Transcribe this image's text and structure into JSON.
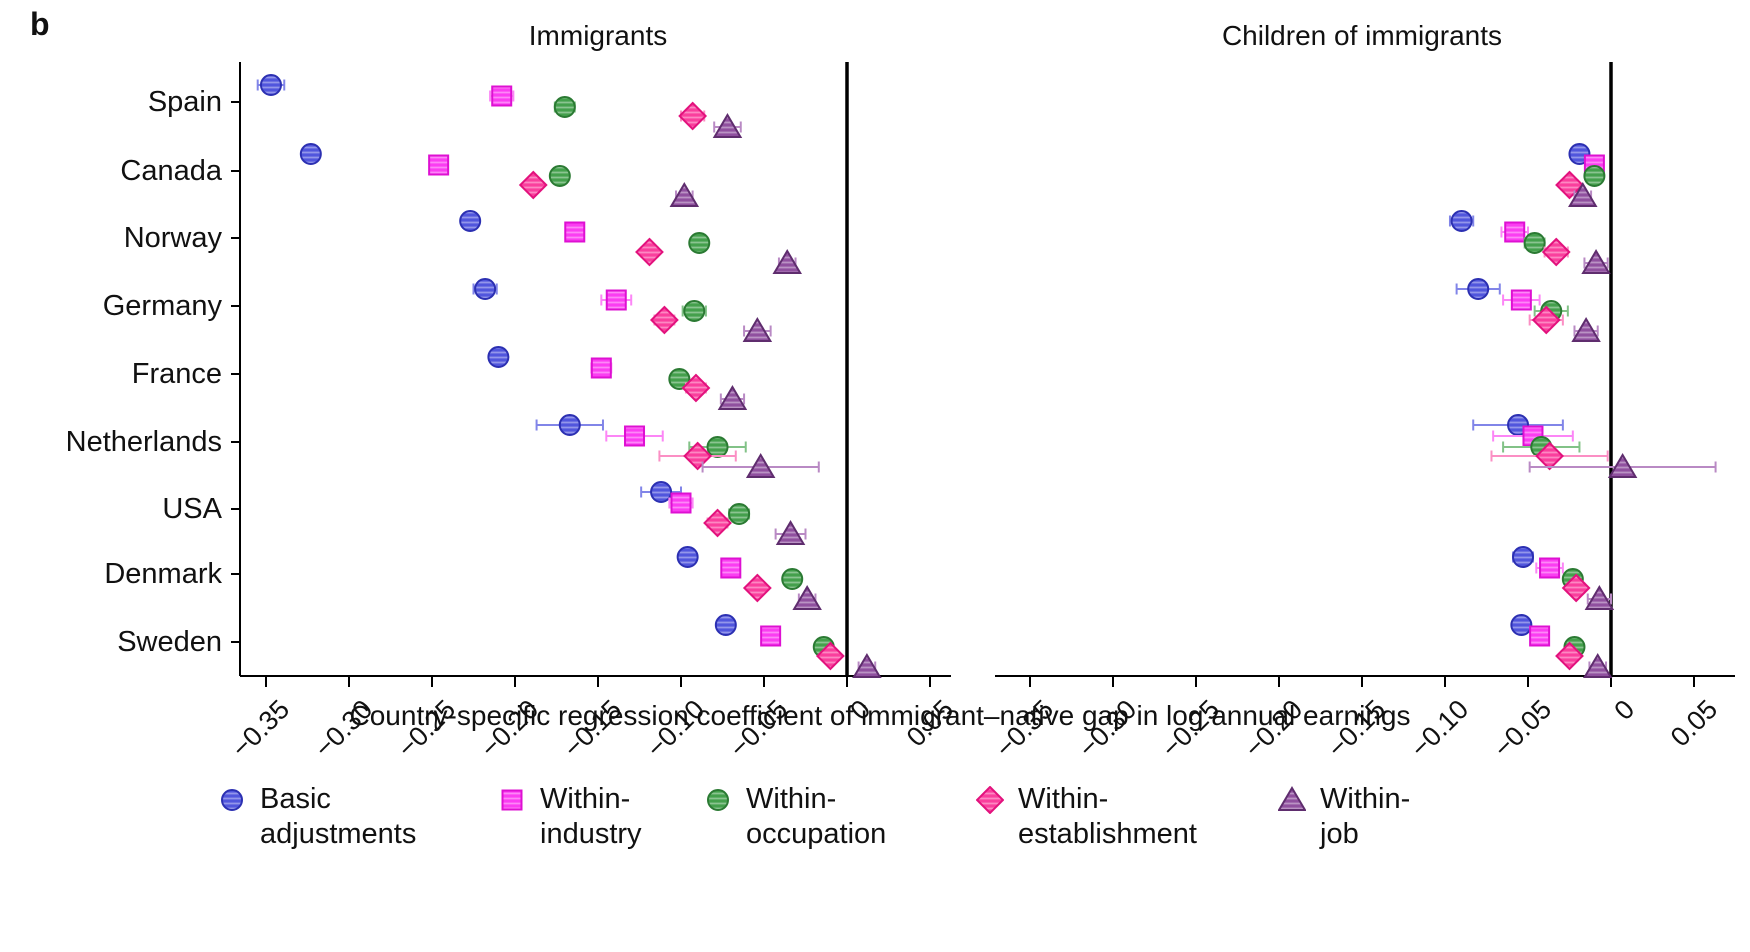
{
  "figure_label": "b",
  "xlabel": "Country-specific regression coefficient of immigrant–native gap in log annual earnings",
  "chart_data": {
    "type": "scatter",
    "subtype": "coefficient-dot-plot-with-error-bars",
    "countries": [
      "Spain",
      "Canada",
      "Norway",
      "Germany",
      "France",
      "Netherlands",
      "USA",
      "Denmark",
      "Sweden"
    ],
    "x_ticks": [
      -0.35,
      -0.3,
      -0.25,
      -0.2,
      -0.15,
      -0.1,
      -0.05,
      0,
      0.05
    ],
    "x_tick_labels": [
      "−0.35",
      "−0.30",
      "−0.25",
      "−0.20",
      "−0.15",
      "−0.10",
      "−0.05",
      "0",
      "0.05"
    ],
    "xlim": [
      -0.385,
      0.075
    ],
    "grid": false,
    "zero_reference_line": true,
    "legend_position": "bottom",
    "series": [
      {
        "name": "Basic adjustments",
        "legend_lines": [
          "Basic",
          "adjustments"
        ],
        "marker": "circle",
        "color": "#5156dd",
        "edge": "#2c30b2",
        "err_color": "#8185e8"
      },
      {
        "name": "Within-industry",
        "legend_lines": [
          "Within-",
          "industry"
        ],
        "marker": "square",
        "color": "#fb3df2",
        "edge": "#de10d2",
        "err_color": "#fc86f6"
      },
      {
        "name": "Within-occupation",
        "legend_lines": [
          "Within-",
          "occupation"
        ],
        "marker": "circle",
        "color": "#44a04c",
        "edge": "#2b7a33",
        "err_color": "#82c287"
      },
      {
        "name": "Within-establishment",
        "legend_lines": [
          "Within-",
          "establishment"
        ],
        "marker": "diamond",
        "color": "#fa3f9d",
        "edge": "#e2127d",
        "err_color": "#fb8fc4"
      },
      {
        "name": "Within-job",
        "legend_lines": [
          "Within-",
          "job"
        ],
        "marker": "triangle",
        "color": "#90509f",
        "edge": "#5f2d6e",
        "err_color": "#b98ac4"
      }
    ],
    "panels": [
      {
        "title": "Immigrants",
        "values": [
          [
            -0.347,
            -0.323,
            -0.227,
            -0.218,
            -0.21,
            -0.167,
            -0.112,
            -0.096,
            -0.073
          ],
          [
            -0.208,
            -0.246,
            -0.164,
            -0.139,
            -0.148,
            -0.128,
            -0.1,
            -0.07,
            -0.046
          ],
          [
            -0.17,
            -0.173,
            -0.089,
            -0.092,
            -0.101,
            -0.078,
            -0.065,
            -0.033,
            -0.014
          ],
          [
            -0.093,
            -0.189,
            -0.119,
            -0.11,
            -0.091,
            -0.09,
            -0.078,
            -0.054,
            -0.01
          ],
          [
            -0.072,
            -0.098,
            -0.036,
            -0.054,
            -0.069,
            -0.052,
            -0.034,
            -0.024,
            0.012
          ]
        ],
        "errors": [
          [
            0.008,
            0.004,
            0.004,
            0.007,
            0.005,
            0.02,
            0.012,
            0.004,
            0.004
          ],
          [
            0.007,
            0.004,
            0.005,
            0.009,
            0.006,
            0.017,
            0.007,
            0.004,
            0.004
          ],
          [
            0.006,
            0.004,
            0.004,
            0.007,
            0.005,
            0.017,
            0.006,
            0.004,
            0.004
          ],
          [
            0.007,
            0.004,
            0.005,
            0.006,
            0.006,
            0.023,
            0.006,
            0.004,
            0.004
          ],
          [
            0.008,
            0.005,
            0.005,
            0.008,
            0.007,
            0.035,
            0.009,
            0.005,
            0.005
          ]
        ]
      },
      {
        "title": "Children of immigrants",
        "values": [
          [
            null,
            -0.019,
            -0.09,
            -0.08,
            null,
            -0.056,
            null,
            -0.053,
            -0.054
          ],
          [
            null,
            -0.01,
            -0.058,
            -0.054,
            null,
            -0.047,
            null,
            -0.037,
            -0.043
          ],
          [
            null,
            -0.01,
            -0.046,
            -0.036,
            null,
            -0.042,
            null,
            -0.023,
            -0.022
          ],
          [
            null,
            -0.025,
            -0.033,
            -0.039,
            null,
            -0.037,
            null,
            -0.021,
            -0.025
          ],
          [
            null,
            -0.017,
            -0.009,
            -0.015,
            null,
            0.007,
            null,
            -0.007,
            -0.008
          ]
        ],
        "errors": [
          [
            null,
            0.004,
            0.007,
            0.013,
            null,
            0.027,
            null,
            0.006,
            0.005
          ],
          [
            null,
            0.004,
            0.008,
            0.011,
            null,
            0.024,
            null,
            0.008,
            0.005
          ],
          [
            null,
            0.004,
            0.006,
            0.01,
            null,
            0.023,
            null,
            0.005,
            0.005
          ],
          [
            null,
            0.005,
            0.007,
            0.01,
            null,
            0.035,
            null,
            0.005,
            0.005
          ],
          [
            null,
            0.005,
            0.007,
            0.007,
            null,
            0.056,
            null,
            0.007,
            0.005
          ]
        ]
      }
    ]
  }
}
